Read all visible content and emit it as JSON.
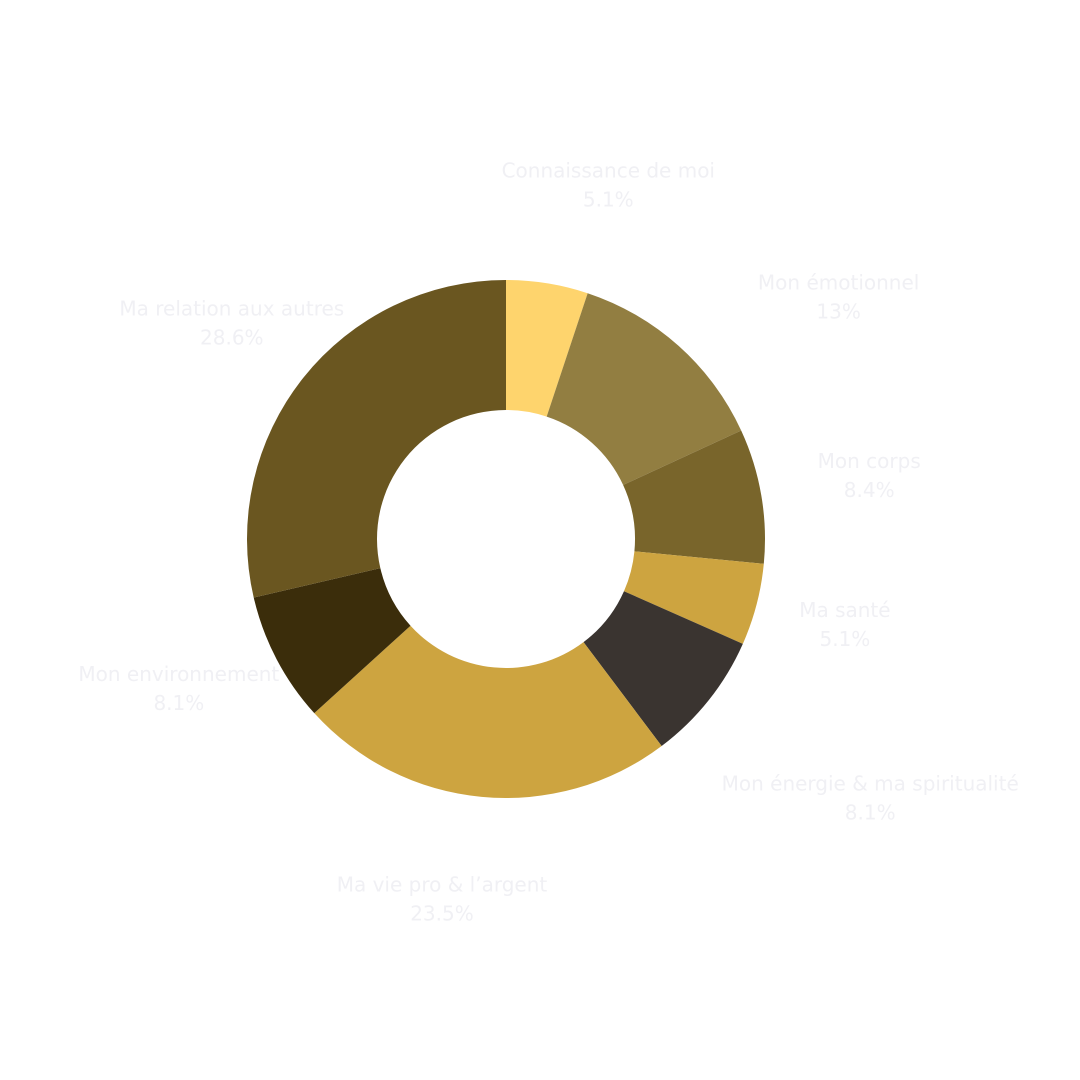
{
  "chart_data": {
    "type": "pie",
    "variant": "donut",
    "label_color": "#f0f0f4",
    "slices": [
      {
        "label": "Connaissance de moi",
        "value": 5.1,
        "display": "5.1%",
        "color": "#fed46d"
      },
      {
        "label": "Mon émotionnel",
        "value": 13,
        "display": "13%",
        "color": "#927e41"
      },
      {
        "label": "Mon corps",
        "value": 8.4,
        "display": "8.4%",
        "color": "#79652b"
      },
      {
        "label": "Ma santé",
        "value": 5.1,
        "display": "5.1%",
        "color": "#cda440"
      },
      {
        "label": "Mon énergie & ma spiritualité",
        "value": 8.1,
        "display": "8.1%",
        "color": "#3a3430"
      },
      {
        "label": "Ma vie pro & l’argent",
        "value": 23.5,
        "display": "23.5%",
        "color": "#cda440"
      },
      {
        "label": "Mon environnement",
        "value": 8.1,
        "display": "8.1%",
        "color": "#3b2d0b"
      },
      {
        "label": "Ma relation aux autres",
        "value": 28.6,
        "display": "28.6%",
        "color": "#6a5620"
      }
    ]
  }
}
